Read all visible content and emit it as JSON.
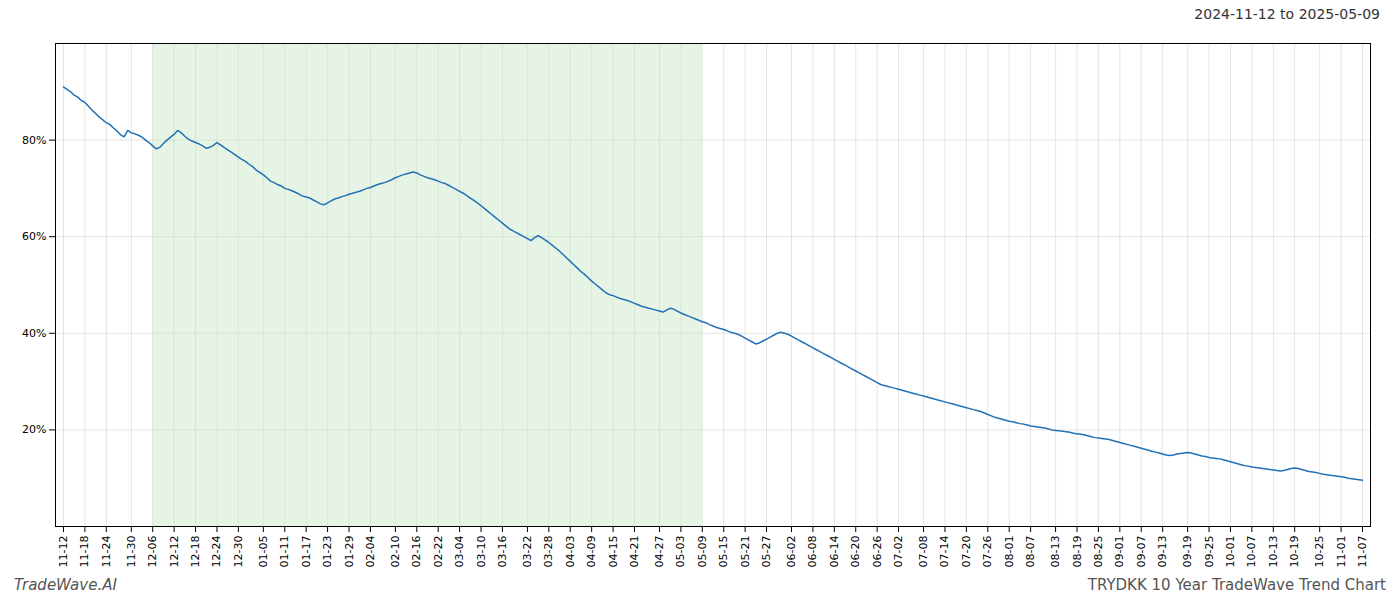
{
  "chart_data": {
    "type": "line",
    "title": "2024-11-12 to 2025-05-09",
    "source": "TradeWave.AI",
    "caption": "TRYDKK 10 Year TradeWave Trend Chart",
    "color": "#2171b5",
    "grid": true,
    "ylim": [
      0.0,
      1.0
    ],
    "yticks": [
      {
        "value": 0.2,
        "label": "20%"
      },
      {
        "value": 0.4,
        "label": "40%"
      },
      {
        "value": 0.6,
        "label": "60%"
      },
      {
        "value": 0.8,
        "label": "80%"
      }
    ],
    "highlight": {
      "from": "12-06",
      "to": "05-09",
      "color": "#c8e6c8"
    },
    "categories": [
      "11-12",
      null,
      null,
      null,
      null,
      null,
      "11-18",
      null,
      null,
      null,
      null,
      null,
      "11-24",
      null,
      null,
      null,
      null,
      null,
      null,
      "11-30",
      null,
      null,
      null,
      null,
      null,
      "12-06",
      null,
      null,
      null,
      null,
      null,
      "12-12",
      null,
      null,
      null,
      null,
      null,
      "12-18",
      null,
      null,
      null,
      null,
      null,
      "12-24",
      null,
      null,
      null,
      null,
      null,
      "12-30",
      null,
      null,
      null,
      null,
      null,
      null,
      "01-05",
      null,
      null,
      null,
      null,
      null,
      "01-11",
      null,
      null,
      null,
      null,
      null,
      "01-17",
      null,
      null,
      null,
      null,
      null,
      "01-23",
      null,
      null,
      null,
      null,
      null,
      "01-29",
      null,
      null,
      null,
      null,
      null,
      "02-04",
      null,
      null,
      null,
      null,
      null,
      null,
      "02-10",
      null,
      null,
      null,
      null,
      null,
      "02-16",
      null,
      null,
      null,
      null,
      null,
      "02-22",
      null,
      null,
      null,
      null,
      null,
      "03-04",
      null,
      null,
      null,
      null,
      null,
      "03-10",
      null,
      null,
      null,
      null,
      null,
      "03-16",
      null,
      null,
      null,
      null,
      null,
      null,
      "03-22",
      null,
      null,
      null,
      null,
      null,
      "03-28",
      null,
      null,
      null,
      null,
      null,
      "04-03",
      null,
      null,
      null,
      null,
      null,
      "04-09",
      null,
      null,
      null,
      null,
      null,
      "04-15",
      null,
      null,
      null,
      null,
      null,
      "04-21",
      null,
      null,
      null,
      null,
      null,
      null,
      "04-27",
      null,
      null,
      null,
      null,
      null,
      "05-03",
      null,
      null,
      null,
      null,
      null,
      "05-09",
      null,
      null,
      null,
      null,
      null,
      "05-15",
      null,
      null,
      null,
      null,
      null,
      "05-21",
      null,
      null,
      null,
      null,
      null,
      "05-27",
      null,
      null,
      null,
      null,
      null,
      null,
      "06-02",
      null,
      null,
      null,
      null,
      null,
      "06-08",
      null,
      null,
      null,
      null,
      null,
      "06-14",
      null,
      null,
      null,
      null,
      null,
      "06-20",
      null,
      null,
      null,
      null,
      null,
      "06-26",
      null,
      null,
      null,
      null,
      null,
      "07-02",
      null,
      null,
      null,
      null,
      null,
      null,
      "07-08",
      null,
      null,
      null,
      null,
      null,
      "07-14",
      null,
      null,
      null,
      null,
      null,
      "07-20",
      null,
      null,
      null,
      null,
      null,
      "07-26",
      null,
      null,
      null,
      null,
      null,
      "08-01",
      null,
      null,
      null,
      null,
      null,
      "08-07",
      null,
      null,
      null,
      null,
      null,
      null,
      "08-13",
      null,
      null,
      null,
      null,
      null,
      "08-19",
      null,
      null,
      null,
      null,
      null,
      "08-25",
      null,
      null,
      null,
      null,
      null,
      "09-01",
      null,
      null,
      null,
      null,
      null,
      "09-07",
      null,
      null,
      null,
      null,
      null,
      "09-13",
      null,
      null,
      null,
      null,
      null,
      null,
      "09-19",
      null,
      null,
      null,
      null,
      null,
      "09-25",
      null,
      null,
      null,
      null,
      null,
      "10-01",
      null,
      null,
      null,
      null,
      null,
      "10-07",
      null,
      null,
      null,
      null,
      null,
      "10-13",
      null,
      null,
      null,
      null,
      null,
      "10-19",
      null,
      null,
      null,
      null,
      null,
      null,
      "10-25",
      null,
      null,
      null,
      null,
      null,
      "11-01",
      null,
      null,
      null,
      null,
      null,
      "11-07"
    ],
    "values": [
      0.91,
      0.905,
      0.9,
      0.893,
      0.889,
      0.882,
      0.878,
      0.87,
      0.862,
      0.855,
      0.848,
      0.842,
      0.836,
      0.832,
      0.825,
      0.819,
      0.811,
      0.807,
      0.82,
      0.815,
      0.813,
      0.81,
      0.806,
      0.8,
      0.795,
      0.788,
      0.782,
      0.785,
      0.793,
      0.8,
      0.806,
      0.812,
      0.82,
      0.815,
      0.808,
      0.802,
      0.798,
      0.795,
      0.792,
      0.788,
      0.783,
      0.785,
      0.789,
      0.795,
      0.79,
      0.785,
      0.78,
      0.775,
      0.77,
      0.765,
      0.76,
      0.756,
      0.75,
      0.745,
      0.738,
      0.733,
      0.728,
      0.722,
      0.715,
      0.712,
      0.708,
      0.705,
      0.7,
      0.698,
      0.695,
      0.692,
      0.688,
      0.684,
      0.682,
      0.68,
      0.676,
      0.672,
      0.668,
      0.666,
      0.67,
      0.674,
      0.678,
      0.68,
      0.683,
      0.685,
      0.688,
      0.69,
      0.692,
      0.694,
      0.697,
      0.7,
      0.702,
      0.705,
      0.708,
      0.71,
      0.712,
      0.715,
      0.718,
      0.722,
      0.725,
      0.728,
      0.73,
      0.732,
      0.734,
      0.732,
      0.728,
      0.725,
      0.722,
      0.72,
      0.718,
      0.715,
      0.712,
      0.71,
      0.706,
      0.702,
      0.698,
      0.694,
      0.69,
      0.685,
      0.68,
      0.675,
      0.67,
      0.664,
      0.658,
      0.652,
      0.646,
      0.64,
      0.634,
      0.628,
      0.622,
      0.616,
      0.612,
      0.608,
      0.604,
      0.6,
      0.596,
      0.592,
      0.598,
      0.602,
      0.598,
      0.593,
      0.588,
      0.582,
      0.576,
      0.57,
      0.563,
      0.556,
      0.549,
      0.542,
      0.535,
      0.528,
      0.522,
      0.515,
      0.508,
      0.502,
      0.496,
      0.49,
      0.484,
      0.48,
      0.478,
      0.475,
      0.472,
      0.47,
      0.468,
      0.465,
      0.462,
      0.459,
      0.456,
      0.454,
      0.452,
      0.45,
      0.448,
      0.446,
      0.444,
      0.448,
      0.452,
      0.45,
      0.446,
      0.442,
      0.439,
      0.436,
      0.433,
      0.43,
      0.427,
      0.424,
      0.422,
      0.418,
      0.415,
      0.412,
      0.41,
      0.408,
      0.405,
      0.402,
      0.4,
      0.398,
      0.394,
      0.39,
      0.386,
      0.382,
      0.378,
      0.38,
      0.384,
      0.388,
      0.392,
      0.396,
      0.4,
      0.402,
      0.4,
      0.398,
      0.394,
      0.39,
      0.386,
      0.382,
      0.378,
      0.374,
      0.37,
      0.366,
      0.362,
      0.358,
      0.354,
      0.35,
      0.346,
      0.342,
      0.338,
      0.334,
      0.33,
      0.326,
      0.322,
      0.318,
      0.314,
      0.31,
      0.306,
      0.302,
      0.298,
      0.294,
      0.292,
      0.29,
      0.288,
      0.286,
      0.284,
      0.282,
      0.28,
      0.278,
      0.276,
      0.274,
      0.272,
      0.27,
      0.268,
      0.266,
      0.264,
      0.262,
      0.26,
      0.258,
      0.256,
      0.254,
      0.252,
      0.25,
      0.248,
      0.246,
      0.244,
      0.242,
      0.24,
      0.238,
      0.235,
      0.232,
      0.229,
      0.226,
      0.224,
      0.222,
      0.22,
      0.218,
      0.217,
      0.215,
      0.213,
      0.212,
      0.21,
      0.208,
      0.207,
      0.206,
      0.205,
      0.204,
      0.202,
      0.2,
      0.199,
      0.198,
      0.197,
      0.196,
      0.195,
      0.193,
      0.192,
      0.191,
      0.19,
      0.188,
      0.186,
      0.184,
      0.183,
      0.182,
      0.181,
      0.18,
      0.178,
      0.176,
      0.174,
      0.172,
      0.17,
      0.168,
      0.166,
      0.164,
      0.162,
      0.16,
      0.158,
      0.156,
      0.154,
      0.152,
      0.15,
      0.148,
      0.147,
      0.148,
      0.15,
      0.151,
      0.152,
      0.153,
      0.152,
      0.15,
      0.148,
      0.146,
      0.145,
      0.143,
      0.142,
      0.141,
      0.14,
      0.138,
      0.136,
      0.134,
      0.132,
      0.13,
      0.128,
      0.126,
      0.125,
      0.123,
      0.122,
      0.121,
      0.12,
      0.119,
      0.118,
      0.117,
      0.116,
      0.115,
      0.116,
      0.118,
      0.12,
      0.121,
      0.12,
      0.118,
      0.116,
      0.114,
      0.113,
      0.112,
      0.11,
      0.108,
      0.107,
      0.106,
      0.105,
      0.104,
      0.103,
      0.102,
      0.1,
      0.099,
      0.098,
      0.097,
      0.096
    ]
  }
}
